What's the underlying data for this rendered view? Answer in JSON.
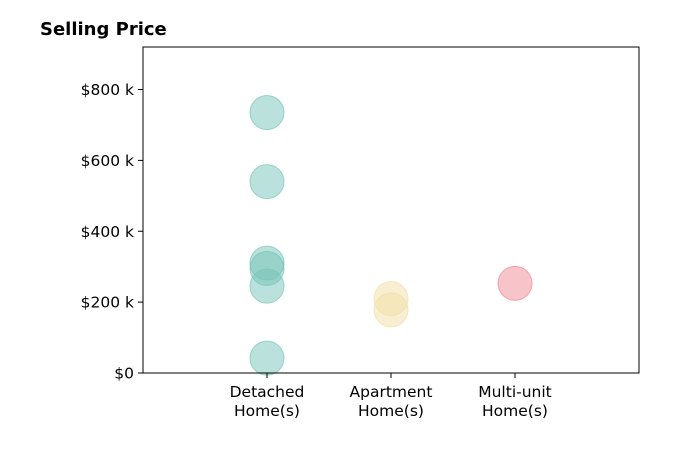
{
  "chart_data": {
    "type": "scatter",
    "title": "Selling Price",
    "xlabel": "",
    "ylabel": "",
    "ylim": [
      0,
      920000
    ],
    "grid": false,
    "yticks": [
      {
        "value": 0,
        "label": "$0"
      },
      {
        "value": 200000,
        "label": "$200 k"
      },
      {
        "value": 400000,
        "label": "$400 k"
      },
      {
        "value": 600000,
        "label": "$600 k"
      },
      {
        "value": 800000,
        "label": "$800 k"
      }
    ],
    "categories": [
      {
        "lines": [
          "Detached",
          "Home(s)"
        ]
      },
      {
        "lines": [
          "Apartment",
          "Home(s)"
        ]
      },
      {
        "lines": [
          "Multi-unit",
          "Home(s)"
        ]
      }
    ],
    "series": [
      {
        "category": 0,
        "color": "#76c4b8",
        "values": [
          735000,
          540000,
          310000,
          295000,
          245000,
          42000
        ]
      },
      {
        "category": 1,
        "color": "#f2dea6",
        "values": [
          210000,
          178000
        ]
      },
      {
        "category": 2,
        "color": "#f08a94",
        "values": [
          253000
        ]
      }
    ]
  }
}
